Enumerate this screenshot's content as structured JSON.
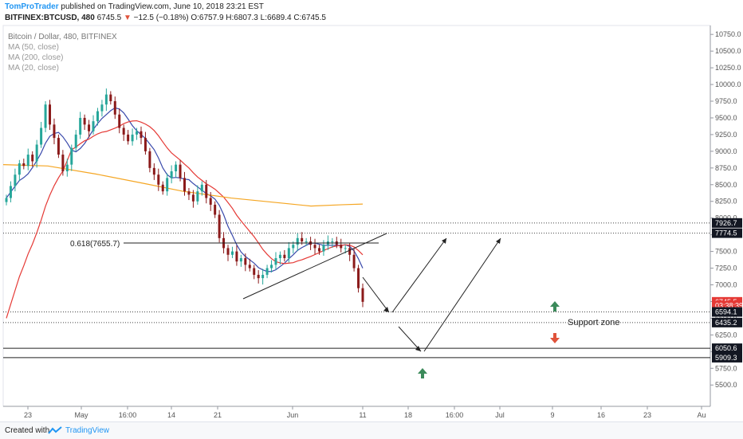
{
  "header": {
    "author": "TomProTrader",
    "published_text": "published on TradingView.com, June 10, 2018 23:21 EST",
    "symbol": "BITFINEX:BTCUSD, 480",
    "last": "6745.5",
    "change": "−12.5 (−0.18%)",
    "ohlc": "O:6757.9 H:6807.3 L:6689.4 C:6745.5"
  },
  "legend": {
    "title": "Bitcoin / Dollar, 480, BITFINEX",
    "ma1": "MA (50, close)",
    "ma2": "MA (200, close)",
    "ma3": "MA (20, close)"
  },
  "annotations": {
    "fib_label": "0.618(7655.7)",
    "support_label": "Support zone"
  },
  "footer": {
    "created_with": "Created with",
    "brand": "TradingView"
  },
  "colors": {
    "up": "#26a69a",
    "down": "#8b1a1a",
    "ma20": "#3949ab",
    "ma50": "#e53935",
    "ma200": "#f5a623",
    "price_tag": "#e53935",
    "arrow_up": "#3b8a5a",
    "arrow_down": "#e0533b"
  },
  "chart_data": {
    "type": "candlestick",
    "title": "Bitcoin / Dollar, 480, BITFINEX",
    "ylim": [
      5250,
      10900
    ],
    "y_ticks": [
      5500,
      5750,
      6000,
      6250,
      6500,
      6750,
      7000,
      7250,
      7500,
      7750,
      8000,
      8250,
      8500,
      8750,
      9000,
      9250,
      9500,
      9750,
      10000,
      10250,
      10500,
      10750
    ],
    "y_tick_labels": [
      "5500.0",
      "5750.0",
      "6000.0",
      "6250.0",
      "6500.0",
      "6750.0",
      "7000.0",
      "7250.0",
      "7500.0",
      "7750.0",
      "8000.0",
      "8250.0",
      "8500.0",
      "8750.0",
      "9000.0",
      "9250.0",
      "9500.0",
      "9750.0",
      "10000.0",
      "10250.0",
      "10500.0",
      "10750.0"
    ],
    "x_tick_labels": [
      "23",
      "May",
      "16:00",
      "14",
      "21",
      "Jun",
      "11",
      "18",
      "16:00",
      "Jul",
      "9",
      "16",
      "23",
      "Au"
    ],
    "price_labels": [
      {
        "value": 7926.7,
        "text": "7926.7",
        "style": "dark"
      },
      {
        "value": 7774.5,
        "text": "7774.5",
        "style": "dark"
      },
      {
        "value": 6745.5,
        "text": "6745.5",
        "style": "red"
      },
      {
        "value": 6690,
        "text": "03:38:39",
        "style": "red"
      },
      {
        "value": 6594.1,
        "text": "6594.1",
        "style": "dark"
      },
      {
        "value": 6435.2,
        "text": "6435.2",
        "style": "dark"
      },
      {
        "value": 6050.6,
        "text": "6050.6",
        "style": "dark"
      },
      {
        "value": 5909.3,
        "text": "5909.3",
        "style": "dark"
      }
    ],
    "candles_close": [
      8300,
      8480,
      8650,
      8820,
      8780,
      8950,
      8850,
      9100,
      9350,
      9700,
      9400,
      9200,
      8950,
      8700,
      8800,
      9050,
      9250,
      9500,
      9400,
      9300,
      9450,
      9600,
      9700,
      9850,
      9750,
      9550,
      9350,
      9250,
      9150,
      9250,
      9300,
      9200,
      9000,
      8750,
      8650,
      8500,
      8400,
      8600,
      8700,
      8800,
      8600,
      8400,
      8350,
      8250,
      8400,
      8500,
      8300,
      8200,
      8050,
      7700,
      7550,
      7450,
      7500,
      7350,
      7400,
      7300,
      7250,
      7150,
      7100,
      7150,
      7250,
      7300,
      7400,
      7450,
      7400,
      7550,
      7600,
      7700,
      7650,
      7650,
      7600,
      7550,
      7500,
      7600,
      7650,
      7650,
      7600,
      7550,
      7550,
      7450,
      7250,
      6950,
      6745.5
    ],
    "support_lines": [
      7926.7,
      7774.5,
      6594.1,
      6435.2,
      6050.6,
      5909.3
    ],
    "fib_level": 7655.7
  }
}
